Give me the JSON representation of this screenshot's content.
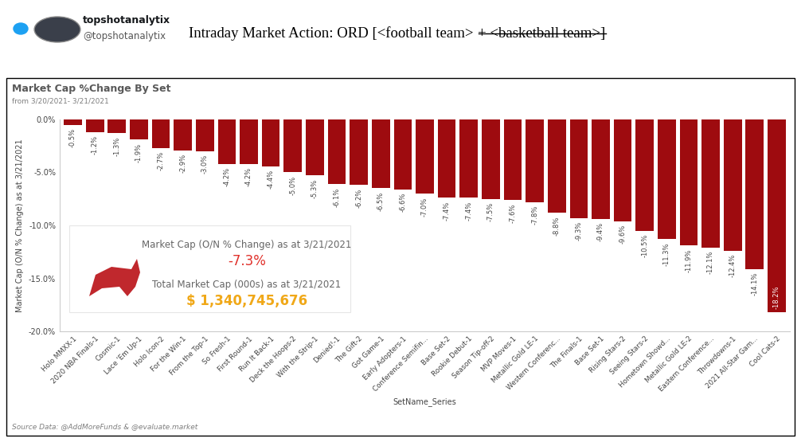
{
  "header": {
    "name": "topshotanalytix",
    "handle": "@topshotanalytix",
    "title": "Intraday Market Action: ORD [<football team>",
    "title_struck": "+ <basketball team>]"
  },
  "chart_data": {
    "type": "bar",
    "title": "Market Cap %Change By Set",
    "subtitle": "from 3/20/2021- 3/21/2021",
    "x_label": "SetName_Series",
    "y_label": "Market Cap (O/N % Change) as at 3/21/2021",
    "categories": [
      "Holo MMXX-1",
      "2020 NBA Finals-1",
      "Cosmic-1",
      "Lace 'Em Up-1",
      "Holo Icon-2",
      "For the Win-1",
      "From the Top-1",
      "So Fresh-1",
      "First Round-1",
      "Run It Back-1",
      "Deck the Hoops-2",
      "With the Strip-1",
      "Denied!-1",
      "The Gift-2",
      "Got Game-1",
      "Early Adopters-1",
      "Conference Semifin...",
      "Base Set-2",
      "Rookie Debut-1",
      "Season Tip-off-2",
      "MVP Moves-1",
      "Metallic Gold LE-1",
      "Western Conferenc...",
      "The Finals-1",
      "Base Set-1",
      "Rising Stars-2",
      "Seeing Stars-2",
      "Hometown Showd...",
      "Metallic Gold LE-2",
      "Eastern Conference...",
      "Throwdowns-1",
      "2021 All-Star Gam...",
      "Cool Cats-2"
    ],
    "values": [
      -0.5,
      -1.2,
      -1.3,
      -1.9,
      -2.7,
      -2.9,
      -3.0,
      -4.2,
      -4.2,
      -4.4,
      -5.0,
      -5.3,
      -6.1,
      -6.2,
      -6.5,
      -6.6,
      -7.0,
      -7.4,
      -7.4,
      -7.5,
      -7.6,
      -7.8,
      -8.8,
      -9.3,
      -9.4,
      -9.6,
      -10.5,
      -11.3,
      -11.9,
      -12.1,
      -12.4,
      -14.1,
      -18.2
    ],
    "value_labels": [
      "-0.5%",
      "-1.2%",
      "-1.3%",
      "-1.9%",
      "-2.7%",
      "-2.9%",
      "-3.0%",
      "-4.2%",
      "-4.2%",
      "-4.4%",
      "-5.0%",
      "-5.3%",
      "-6.1%",
      "-6.2%",
      "-6.5%",
      "-6.6%",
      "-7.0%",
      "-7.4%",
      "-7.4%",
      "-7.5%",
      "-7.6%",
      "-7.8%",
      "-8.8%",
      "-9.3%",
      "-9.4%",
      "-9.6%",
      "-10.5%",
      "-11.3%",
      "-11.9%",
      "-12.1%",
      "-12.4%",
      "-14.1%",
      "-18.2%"
    ],
    "data_labels": true,
    "color": "#9e0b0f",
    "ylim": [
      -20,
      0
    ],
    "yticks": [
      {
        "value": 0,
        "label": "0.0%"
      },
      {
        "value": -5,
        "label": "-5.0%"
      },
      {
        "value": -10,
        "label": "-10.0%"
      },
      {
        "value": -15,
        "label": "-15.0%"
      },
      {
        "value": -20,
        "label": "-20.0%"
      }
    ],
    "kpis": [
      {
        "label": "Market Cap (O/N % Change) as at 3/21/2021",
        "value": -7.3,
        "value_label": "-7.3%",
        "color": "#e0302a"
      },
      {
        "label": "Total Market Cap (000s) as at 3/21/2021",
        "value": 1340745676,
        "value_label": "$ 1,340,745,676",
        "color": "#f0a818"
      }
    ],
    "source": "Source Data: @AddMoreFunds & @evaluate.market"
  }
}
